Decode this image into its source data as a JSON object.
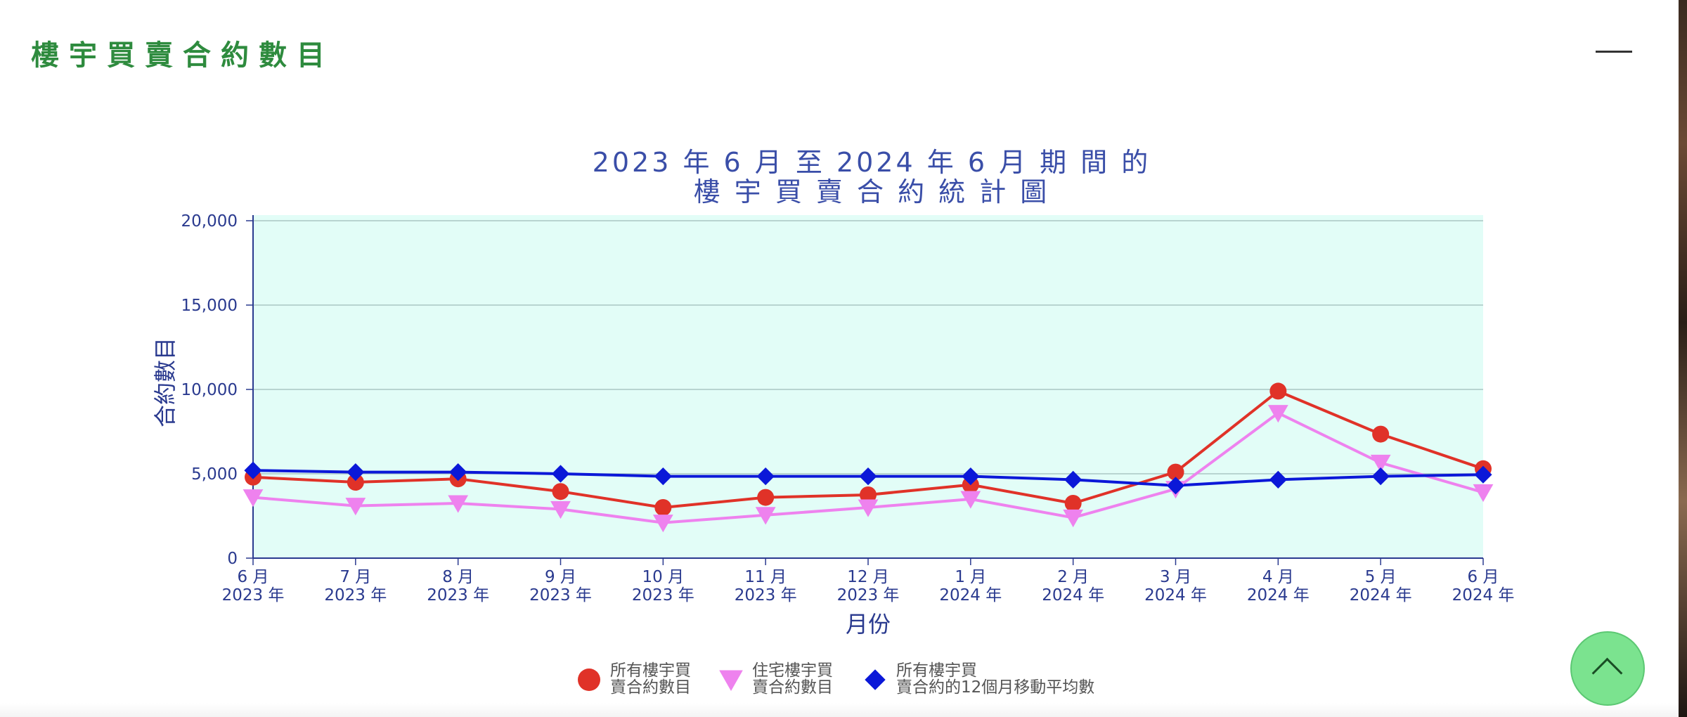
{
  "page": {
    "title": "樓宇買賣合約數目"
  },
  "menu": {
    "icon": "hamburger-menu-icon"
  },
  "back_to_top": {
    "icon": "chevron-up-icon"
  },
  "chart_data": {
    "type": "line",
    "title_lines": [
      "2023 年 6 月 至 2024 年 6 月 期 間 的",
      "樓 宇 買 賣 合 約 統 計 圖"
    ],
    "xlabel": "月份",
    "ylabel": "合約數目",
    "ylim": [
      0,
      20000
    ],
    "yticks": [
      "0",
      "5,000",
      "10,000",
      "15,000",
      "20,000"
    ],
    "ytick_values": [
      0,
      5000,
      10000,
      15000,
      20000
    ],
    "grid": true,
    "legend_position": "bottom",
    "plot_background": "#e2fdf7",
    "categories": [
      [
        "6 月",
        "2023 年"
      ],
      [
        "7 月",
        "2023 年"
      ],
      [
        "8 月",
        "2023 年"
      ],
      [
        "9 月",
        "2023 年"
      ],
      [
        "10 月",
        "2023 年"
      ],
      [
        "11 月",
        "2023 年"
      ],
      [
        "12 月",
        "2023 年"
      ],
      [
        "1 月",
        "2024 年"
      ],
      [
        "2 月",
        "2024 年"
      ],
      [
        "3 月",
        "2024 年"
      ],
      [
        "4 月",
        "2024 年"
      ],
      [
        "5 月",
        "2024 年"
      ],
      [
        "6 月",
        "2024 年"
      ]
    ],
    "series": [
      {
        "name_lines": [
          "所有樓宇買",
          "賣合約數目"
        ],
        "color": "#e03228",
        "marker": "circle",
        "values": [
          4800,
          4500,
          4700,
          3950,
          3000,
          3600,
          3750,
          4350,
          3250,
          5100,
          9900,
          7350,
          5300
        ]
      },
      {
        "name_lines": [
          "住宅樓宇買",
          "賣合約數目"
        ],
        "color": "#ee82ee",
        "marker": "triangle-down",
        "values": [
          3600,
          3100,
          3250,
          2900,
          2100,
          2550,
          3000,
          3500,
          2400,
          4100,
          8600,
          5650,
          3900
        ]
      },
      {
        "name_lines": [
          "所有樓宇買",
          "賣合約的12個月移動平均數"
        ],
        "color": "#0b18d8",
        "marker": "diamond",
        "values": [
          5200,
          5100,
          5100,
          5000,
          4850,
          4850,
          4850,
          4850,
          4650,
          4300,
          4650,
          4850,
          4950
        ]
      }
    ]
  }
}
